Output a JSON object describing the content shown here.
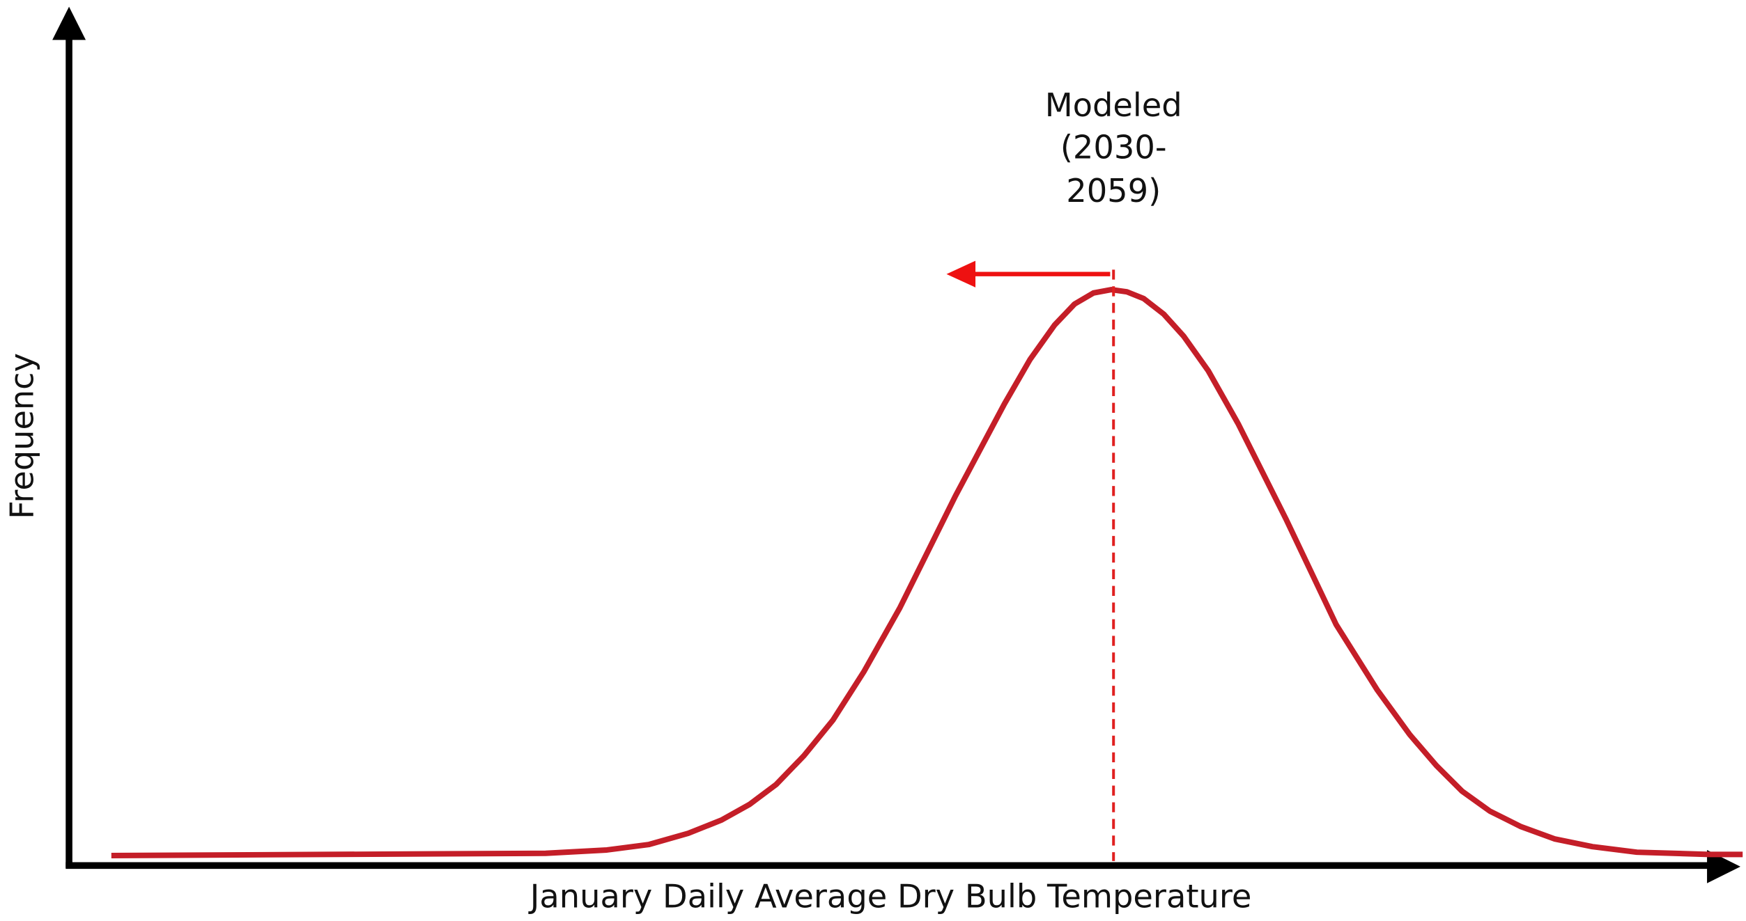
{
  "annotation": {
    "lines": [
      "Modeled",
      "(2030-",
      "2059)"
    ]
  },
  "x_axis": {
    "label": "January Daily Average Dry Bulb Temperature"
  },
  "y_axis": {
    "label": "Frequency"
  }
}
